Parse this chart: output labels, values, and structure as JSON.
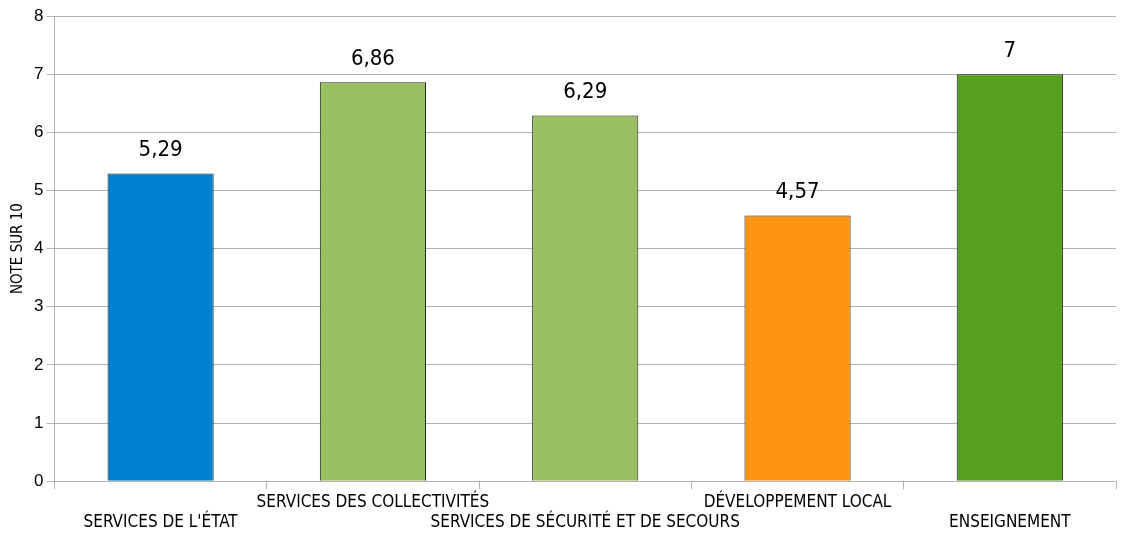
{
  "chart_data": {
    "type": "bar",
    "ylabel": "NOTE SUR 10",
    "categories": [
      "SERVICES DE L'ÉTAT",
      "SERVICES DES COLLECTIVITÉS",
      "SERVICES DE SÉCURITÉ ET DE SECOURS",
      "DÉVELOPPEMENT LOCAL",
      "ENSEIGNEMENT"
    ],
    "values": [
      5.29,
      6.86,
      6.29,
      4.57,
      7
    ],
    "value_labels": [
      "5,29",
      "6,86",
      "6,29",
      "4,57",
      "7"
    ],
    "colors": [
      "#0080d0",
      "#98c060",
      "#98c060",
      "#ff9412",
      "#55a01e"
    ],
    "ylim": [
      0,
      8
    ],
    "yticks": [
      0,
      1,
      2,
      3,
      4,
      5,
      6,
      7,
      8
    ],
    "grid": "y",
    "legend": false
  }
}
